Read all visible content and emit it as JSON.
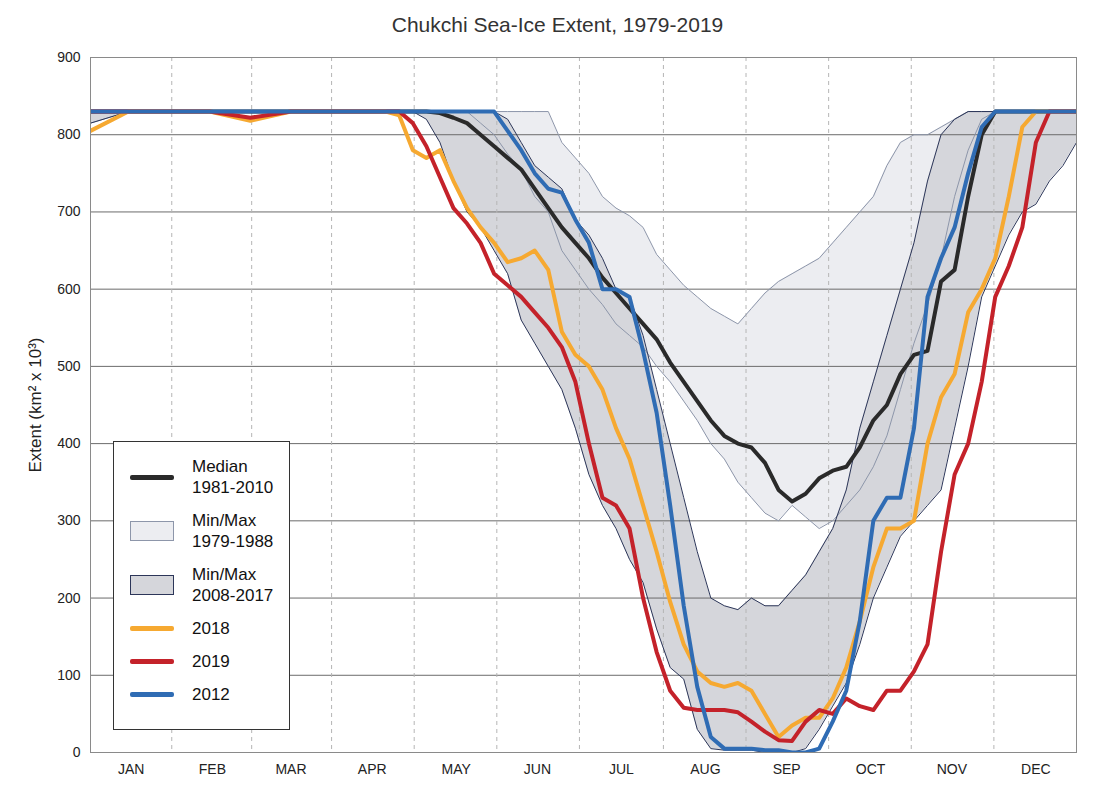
{
  "chart_data": {
    "type": "line",
    "title": "Chukchi Sea-Ice Extent, 1979-2019",
    "y_label": "Extent (km² x 10³)",
    "x": [
      1,
      15,
      30,
      45,
      60,
      75,
      90,
      105,
      110,
      115,
      120,
      125,
      130,
      135,
      140,
      145,
      150,
      155,
      160,
      165,
      170,
      175,
      180,
      185,
      190,
      195,
      200,
      205,
      210,
      215,
      220,
      225,
      230,
      235,
      240,
      245,
      250,
      255,
      260,
      265,
      270,
      275,
      280,
      285,
      290,
      295,
      300,
      305,
      310,
      315,
      320,
      325,
      330,
      335,
      340,
      345,
      350,
      355,
      360,
      365
    ],
    "xlim": [
      1,
      365
    ],
    "xticks": [
      {
        "value": 16,
        "label": "JAN"
      },
      {
        "value": 46,
        "label": "FEB"
      },
      {
        "value": 75,
        "label": "MAR"
      },
      {
        "value": 105,
        "label": "APR"
      },
      {
        "value": 136,
        "label": "MAY"
      },
      {
        "value": 166,
        "label": "JUN"
      },
      {
        "value": 197,
        "label": "JUL"
      },
      {
        "value": 228,
        "label": "AUG"
      },
      {
        "value": 258,
        "label": "SEP"
      },
      {
        "value": 289,
        "label": "OCT"
      },
      {
        "value": 319,
        "label": "NOV"
      },
      {
        "value": 350,
        "label": "DEC"
      }
    ],
    "ylim": [
      0,
      900
    ],
    "yticks": [
      0,
      100,
      200,
      300,
      400,
      500,
      600,
      700,
      800,
      900
    ],
    "grid": true,
    "legend": "lower left",
    "series": [
      {
        "name": "Median 1981-2010",
        "type": "line",
        "color": "#2a2a2a",
        "values": [
          830,
          830,
          830,
          830,
          830,
          830,
          830,
          830,
          830,
          830,
          830,
          830,
          828,
          822,
          815,
          800,
          785,
          770,
          755,
          730,
          705,
          680,
          660,
          640,
          615,
          595,
          575,
          555,
          535,
          505,
          480,
          455,
          430,
          410,
          400,
          395,
          375,
          340,
          325,
          335,
          355,
          365,
          370,
          395,
          430,
          450,
          490,
          515,
          520,
          610,
          625,
          720,
          800,
          830,
          830,
          830,
          830,
          830,
          830,
          830
        ]
      },
      {
        "name": "Min/Max 1979-1988",
        "type": "band",
        "color": "#ecedf1",
        "low": [
          815,
          830,
          830,
          830,
          830,
          830,
          830,
          830,
          830,
          830,
          830,
          830,
          830,
          830,
          830,
          815,
          800,
          775,
          755,
          720,
          700,
          650,
          625,
          600,
          580,
          555,
          540,
          525,
          500,
          480,
          455,
          430,
          400,
          380,
          350,
          330,
          310,
          300,
          320,
          305,
          290,
          300,
          320,
          340,
          370,
          410,
          470,
          530,
          580,
          640,
          720,
          780,
          820,
          830,
          830,
          830,
          830,
          830,
          830,
          830
        ],
        "high": [
          830,
          830,
          830,
          830,
          830,
          830,
          830,
          830,
          830,
          830,
          830,
          830,
          830,
          830,
          830,
          830,
          830,
          830,
          830,
          830,
          830,
          790,
          770,
          750,
          720,
          705,
          695,
          680,
          645,
          625,
          605,
          590,
          575,
          565,
          555,
          575,
          595,
          610,
          620,
          630,
          640,
          660,
          680,
          700,
          720,
          760,
          790,
          800,
          800,
          810,
          820,
          830,
          830,
          830,
          830,
          830,
          830,
          830,
          830,
          830
        ]
      },
      {
        "name": "Min/Max 2008-2017",
        "type": "band",
        "color": "#d5d6db",
        "low": [
          815,
          830,
          830,
          830,
          830,
          830,
          830,
          830,
          830,
          830,
          830,
          820,
          790,
          740,
          700,
          680,
          650,
          620,
          560,
          530,
          500,
          470,
          420,
          360,
          320,
          290,
          250,
          220,
          160,
          110,
          95,
          30,
          5,
          3,
          3,
          3,
          0,
          0,
          0,
          5,
          30,
          60,
          90,
          140,
          200,
          240,
          280,
          300,
          320,
          340,
          420,
          500,
          590,
          630,
          670,
          700,
          710,
          740,
          760,
          790
        ],
        "high": [
          830,
          830,
          830,
          830,
          830,
          830,
          830,
          830,
          830,
          830,
          830,
          830,
          830,
          830,
          830,
          830,
          830,
          820,
          790,
          760,
          745,
          730,
          690,
          670,
          640,
          600,
          590,
          540,
          470,
          400,
          330,
          260,
          200,
          190,
          185,
          200,
          190,
          190,
          210,
          230,
          260,
          290,
          340,
          420,
          480,
          540,
          600,
          660,
          740,
          800,
          820,
          830,
          830,
          830,
          830,
          830,
          830,
          830,
          830,
          830
        ]
      },
      {
        "name": "2018",
        "type": "line",
        "color": "#f6a931",
        "values": [
          805,
          830,
          830,
          830,
          818,
          830,
          830,
          830,
          830,
          825,
          780,
          770,
          780,
          740,
          705,
          680,
          660,
          635,
          640,
          650,
          625,
          545,
          515,
          500,
          470,
          420,
          380,
          320,
          260,
          195,
          140,
          105,
          90,
          85,
          90,
          80,
          50,
          20,
          35,
          45,
          45,
          70,
          110,
          170,
          240,
          290,
          290,
          300,
          400,
          460,
          490,
          570,
          600,
          640,
          720,
          810,
          830,
          830,
          830,
          830
        ]
      },
      {
        "name": "2019",
        "type": "line",
        "color": "#c4222a",
        "values": [
          830,
          830,
          830,
          830,
          822,
          830,
          830,
          830,
          830,
          830,
          815,
          785,
          745,
          705,
          685,
          660,
          620,
          605,
          590,
          570,
          550,
          525,
          480,
          400,
          330,
          320,
          290,
          200,
          130,
          80,
          58,
          55,
          55,
          55,
          52,
          40,
          27,
          16,
          15,
          40,
          55,
          50,
          70,
          60,
          55,
          80,
          80,
          105,
          140,
          260,
          360,
          400,
          480,
          590,
          630,
          680,
          790,
          830,
          830,
          830
        ]
      },
      {
        "name": "2012",
        "type": "line",
        "color": "#2f6cb4",
        "values": [
          830,
          830,
          830,
          830,
          830,
          830,
          830,
          830,
          830,
          830,
          830,
          830,
          830,
          830,
          830,
          830,
          830,
          805,
          780,
          750,
          730,
          725,
          690,
          660,
          600,
          600,
          590,
          520,
          440,
          320,
          190,
          85,
          20,
          5,
          5,
          5,
          3,
          3,
          0,
          0,
          5,
          40,
          80,
          170,
          300,
          330,
          330,
          420,
          590,
          640,
          680,
          750,
          810,
          830,
          830,
          830,
          830,
          830,
          830,
          830
        ]
      }
    ]
  }
}
